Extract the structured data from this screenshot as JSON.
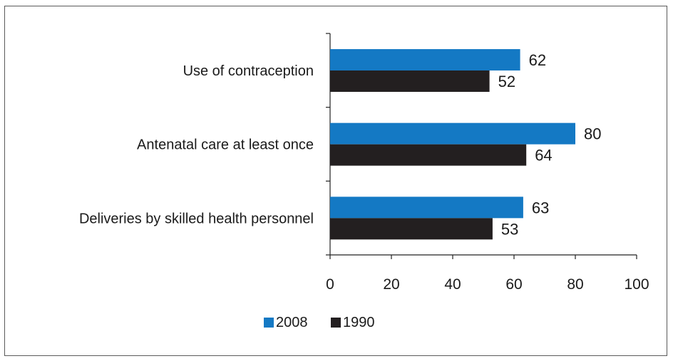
{
  "chart_data": {
    "type": "bar",
    "orientation": "horizontal",
    "categories": [
      "Use of contraception",
      "Antenatal care at least once",
      "Deliveries by skilled health personnel"
    ],
    "series": [
      {
        "name": "2008",
        "values": [
          62,
          80,
          63
        ],
        "color": "#1479c4"
      },
      {
        "name": "1990",
        "values": [
          52,
          64,
          53
        ],
        "color": "#231f20"
      }
    ],
    "xlim": [
      0,
      100
    ],
    "xticks": [
      "0",
      "20",
      "40",
      "60",
      "80",
      "100"
    ],
    "xlabel": "",
    "ylabel": "",
    "title": "",
    "grid": false,
    "legend_position": "bottom"
  }
}
